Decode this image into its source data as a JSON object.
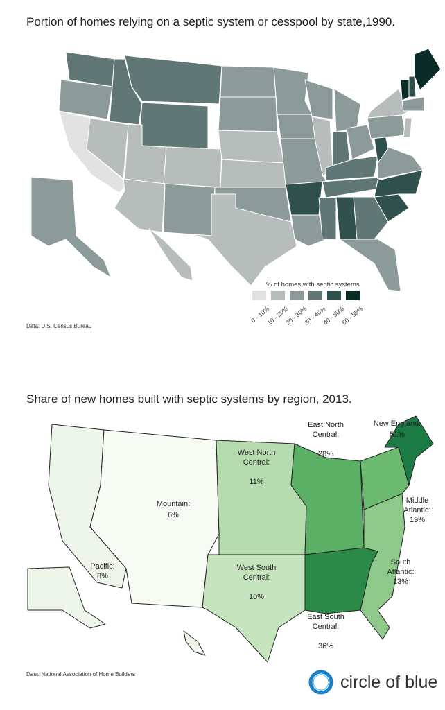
{
  "map1": {
    "title": "Portion of homes relying on a septic system or cesspool by state,1990.",
    "source": "Data: U.S. Census Bureau",
    "legend": {
      "title": "% of homes with septic systems",
      "bins": [
        {
          "label": "0 - 10%",
          "color": "#e2e2e2"
        },
        {
          "label": "10 - 20%",
          "color": "#b6bdbb"
        },
        {
          "label": "20 - 30%",
          "color": "#8c9a99"
        },
        {
          "label": "30 - 40%",
          "color": "#617775"
        },
        {
          "label": "40 - 50%",
          "color": "#30504d"
        },
        {
          "label": "50 - 55%",
          "color": "#0b2b27"
        }
      ]
    },
    "states": {
      "WA": 3,
      "OR": 2,
      "CA": 0,
      "NV": 1,
      "ID": 3,
      "MT": 3,
      "WY": 3,
      "UT": 1,
      "CO": 1,
      "AZ": 1,
      "NM": 2,
      "ND": 2,
      "SD": 2,
      "NE": 1,
      "KS": 1,
      "OK": 2,
      "TX": 1,
      "MN": 2,
      "IA": 2,
      "MO": 2,
      "AR": 4,
      "LA": 2,
      "WI": 2,
      "IL": 1,
      "MI": 2,
      "IN": 3,
      "OH": 2,
      "KY": 3,
      "TN": 3,
      "MS": 3,
      "AL": 4,
      "GA": 3,
      "FL": 2,
      "SC": 4,
      "NC": 4,
      "VA": 2,
      "WV": 4,
      "PA": 2,
      "NY": 1,
      "VT": 5,
      "NH": 4,
      "ME": 5,
      "SNE": 2,
      "MIDATL": 1,
      "AK": 2,
      "HI": 1
    }
  },
  "map2": {
    "title": "Share of new homes built with septic systems by region, 2013.",
    "source": "Data: National Association of Home Builders",
    "regions": [
      {
        "id": "pacific",
        "name": "Pacific:",
        "value": "8%",
        "color": "#eef6ec"
      },
      {
        "id": "mountain",
        "name": "Mountain:",
        "value": "6%",
        "color": "#f6fbf4"
      },
      {
        "id": "wnc",
        "name": "West North Central:",
        "value": "11%",
        "color": "#b5dbae"
      },
      {
        "id": "wsc",
        "name": "West South Central:",
        "value": "10%",
        "color": "#c6e5bf"
      },
      {
        "id": "enc",
        "name": "East North Central:",
        "value": "28%",
        "color": "#5bb066"
      },
      {
        "id": "esc",
        "name": "East South Central:",
        "value": "36%",
        "color": "#2c8a48"
      },
      {
        "id": "sa",
        "name": "South Atlantic:",
        "value": "13%",
        "color": "#8ec98b"
      },
      {
        "id": "ma",
        "name": "Middle Atlantic:",
        "value": "19%",
        "color": "#6cba70"
      },
      {
        "id": "ne",
        "name": "New England:",
        "value": "51%",
        "color": "#1c7a44"
      }
    ]
  },
  "logo": {
    "text": "circle of blue",
    "color": "#1a7fbf"
  }
}
